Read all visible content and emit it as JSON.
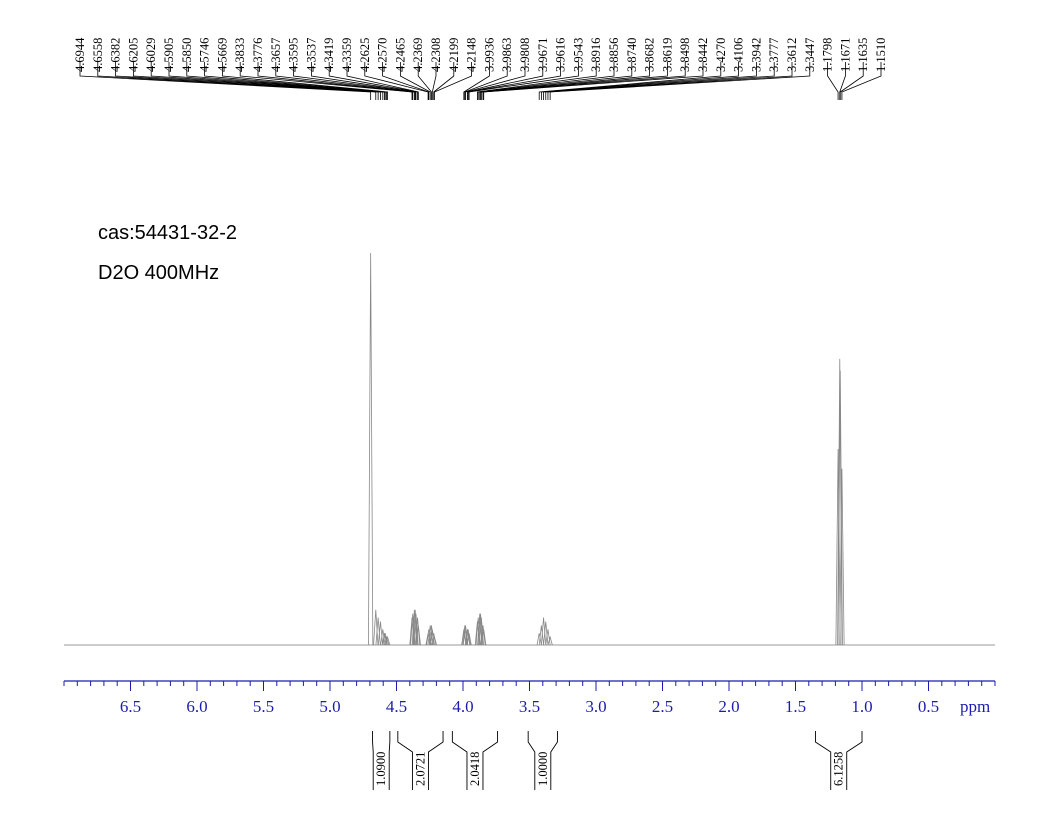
{
  "chart_data": {
    "type": "nmr",
    "annotations": [
      "cas:54431-32-2",
      "D2O 400MHz"
    ],
    "xlabel": "ppm",
    "xlim": [
      7.0,
      0.0
    ],
    "ylim": [
      0,
      100
    ],
    "xticks": [
      6.5,
      {
        "value": 6.0,
        "label": "6.0"
      },
      5.5,
      {
        "value": 5.0,
        "label": "5.0"
      },
      4.5,
      {
        "value": 4.0,
        "label": "4.0"
      },
      3.5,
      {
        "value": 3.0,
        "label": "3.0"
      },
      2.5,
      {
        "value": 2.0,
        "label": "2.0"
      },
      1.5,
      {
        "value": 1.0,
        "label": "1.0"
      },
      0.5
    ],
    "peaks": [
      4.6944,
      4.6558,
      4.6382,
      4.6205,
      4.6029,
      4.5905,
      {
        "value": 4.585,
        "label": "4.5850"
      },
      4.5746,
      4.5669,
      4.3833,
      4.3776,
      4.3657,
      4.3595,
      4.3537,
      4.3419,
      4.3359,
      4.2625,
      {
        "value": 4.257,
        "label": "4.2570"
      },
      4.2465,
      4.2369,
      4.2308,
      4.2199,
      4.2148,
      3.9936,
      3.9863,
      3.9808,
      3.9671,
      3.9616,
      3.9543,
      3.8916,
      3.8856,
      {
        "value": 3.874,
        "label": "3.8740"
      },
      3.8682,
      3.8619,
      3.8498,
      3.8442,
      {
        "value": 3.427,
        "label": "3.4270"
      },
      3.4106,
      3.3942,
      3.3777,
      3.3612,
      3.3447,
      1.1798,
      1.1671,
      1.1635,
      {
        "value": 1.151,
        "label": "1.1510"
      }
    ],
    "peak_heights": [
      100,
      9,
      7,
      6,
      4,
      3,
      3,
      2,
      2,
      7,
      8,
      9,
      9,
      8,
      7,
      5,
      3,
      4,
      5,
      5,
      4,
      3,
      2,
      4,
      5,
      5,
      4,
      4,
      3,
      6,
      7,
      8,
      8,
      7,
      5,
      4,
      3,
      5,
      7,
      6,
      4,
      2,
      50,
      73,
      70,
      45
    ],
    "integrals": [
      {
        "range": [
          4.68,
          4.55
        ],
        "value": {
          "value": 1.09,
          "label": "1.0900"
        }
      },
      {
        "range": [
          4.49,
          4.15
        ],
        "value": 2.0721
      },
      {
        "range": [
          4.08,
          3.74
        ],
        "value": 2.0418
      },
      {
        "range": [
          3.51,
          3.29
        ],
        "value": {
          "value": 1.0,
          "label": "1.0000"
        }
      },
      {
        "range": [
          1.35,
          1.0
        ],
        "value": 6.1258
      }
    ]
  }
}
